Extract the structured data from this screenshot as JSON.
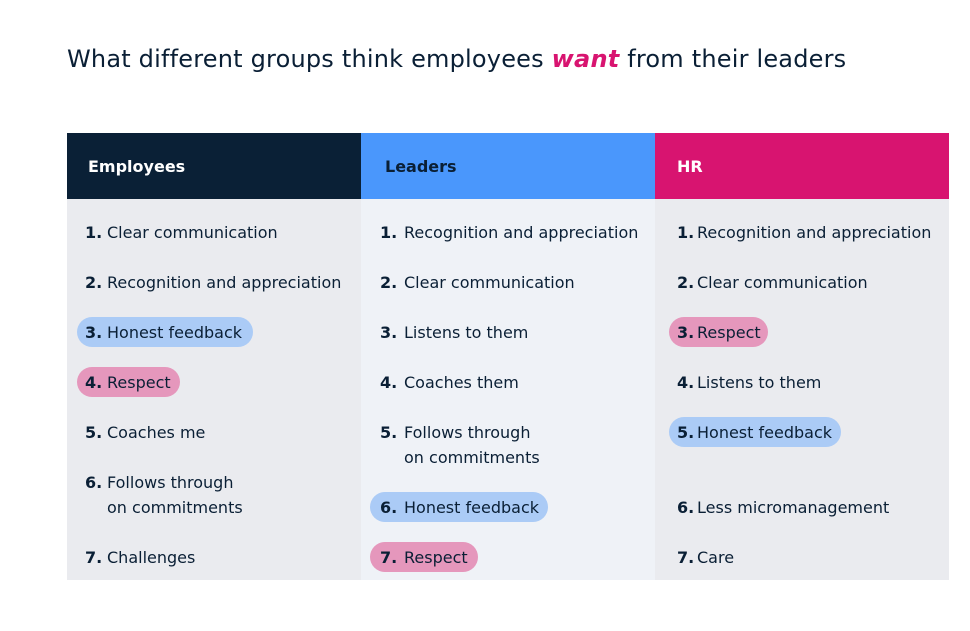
{
  "title": {
    "before": "What different groups think employees ",
    "emphasis": "want",
    "after": " from their leaders"
  },
  "colors": {
    "employees_header": "#0a2036",
    "leaders_header": "#4a97fc",
    "hr_header": "#d81470",
    "highlight_honest_feedback": "#abcbf6",
    "highlight_respect": "#e597bc"
  },
  "columns": [
    {
      "header": "Employees",
      "items": [
        {
          "num": "1.",
          "text": "Clear communication",
          "highlight": "none"
        },
        {
          "num": "2.",
          "text": "Recognition and appreciation",
          "highlight": "none"
        },
        {
          "num": "3.",
          "text": "Honest feedback",
          "highlight": "blue"
        },
        {
          "num": "4.",
          "text": "Respect",
          "highlight": "pink"
        },
        {
          "num": "5.",
          "text": "Coaches me",
          "highlight": "none"
        },
        {
          "num": "6.",
          "text_line1": "Follows through",
          "text_line2": "on commitments",
          "highlight": "none"
        },
        {
          "num": "7.",
          "text": "Challenges",
          "highlight": "none"
        }
      ]
    },
    {
      "header": "Leaders",
      "items": [
        {
          "num": "1.",
          "text": "Recognition and appreciation",
          "highlight": "none"
        },
        {
          "num": "2.",
          "text": "Clear communication",
          "highlight": "none"
        },
        {
          "num": "3.",
          "text": "Listens to them",
          "highlight": "none"
        },
        {
          "num": "4.",
          "text": "Coaches them",
          "highlight": "none"
        },
        {
          "num": "5.",
          "text_line1": "Follows through",
          "text_line2": "on commitments",
          "highlight": "none"
        },
        {
          "num": "6.",
          "text": "Honest feedback",
          "highlight": "blue"
        },
        {
          "num": "7.",
          "text": "Respect",
          "highlight": "pink"
        }
      ]
    },
    {
      "header": "HR",
      "items": [
        {
          "num": "1.",
          "text": "Recognition and appreciation",
          "highlight": "none"
        },
        {
          "num": "2.",
          "text": "Clear communication",
          "highlight": "none"
        },
        {
          "num": "3.",
          "text": "Respect",
          "highlight": "pink"
        },
        {
          "num": "4.",
          "text": "Listens to them",
          "highlight": "none"
        },
        {
          "num": "5.",
          "text": "Honest feedback",
          "highlight": "blue"
        },
        {
          "num": "6.",
          "text": "Less micromanagement",
          "highlight": "none"
        },
        {
          "num": "7.",
          "text": "Care",
          "highlight": "none"
        }
      ]
    }
  ]
}
